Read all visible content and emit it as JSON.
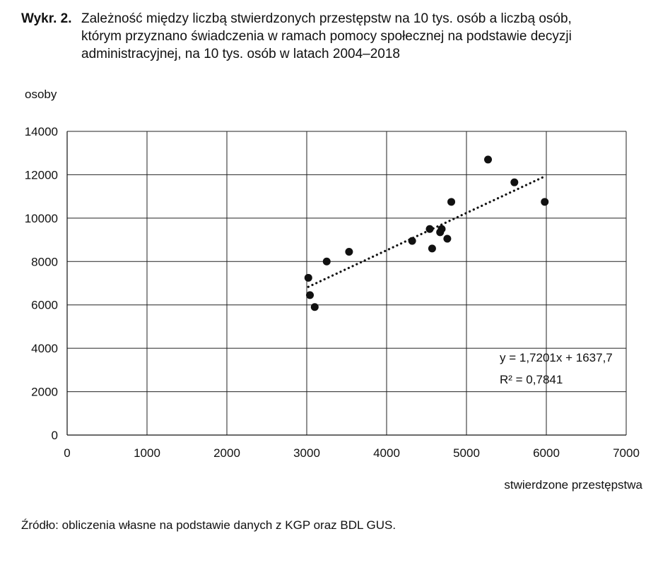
{
  "figure": {
    "label": "Wykr. 2.",
    "title_lines": [
      "Zależność między liczbą stwierdzonych przestępstw na 10 tys. osób a liczbą osób,",
      "którym przyznano świadczenia w ramach pomocy społecznej na podstawie decyzji",
      "administracyjnej, na 10 tys. osób w latach 2004–2018"
    ],
    "source": "Źródło: obliczenia własne na podstawie danych z KGP oraz BDL GUS."
  },
  "chart_data": {
    "type": "scatter",
    "title": "Zależność między liczbą stwierdzonych przestępstw na 10 tys. osób a liczbą osób, którym przyznano świadczenia w ramach pomocy społecznej na podstawie decyzji administracyjnej, na 10 tys. osób w latach 2004–2018",
    "xlabel": "stwierdzone przestępstwa",
    "ylabel": "osoby",
    "xlim": [
      0,
      7000
    ],
    "ylim": [
      0,
      14000
    ],
    "x_ticks": [
      0,
      1000,
      2000,
      3000,
      4000,
      5000,
      6000,
      7000
    ],
    "y_ticks": [
      0,
      2000,
      4000,
      6000,
      8000,
      10000,
      12000,
      14000
    ],
    "grid": true,
    "points": [
      {
        "x": 3020,
        "y": 7250
      },
      {
        "x": 3040,
        "y": 6450
      },
      {
        "x": 3100,
        "y": 5900
      },
      {
        "x": 3250,
        "y": 8000
      },
      {
        "x": 3530,
        "y": 8450
      },
      {
        "x": 4320,
        "y": 8950
      },
      {
        "x": 4540,
        "y": 9500
      },
      {
        "x": 4570,
        "y": 8600
      },
      {
        "x": 4670,
        "y": 9350
      },
      {
        "x": 4690,
        "y": 9500
      },
      {
        "x": 4760,
        "y": 9050
      },
      {
        "x": 4810,
        "y": 10750
      },
      {
        "x": 5270,
        "y": 12700
      },
      {
        "x": 5600,
        "y": 11650
      },
      {
        "x": 5980,
        "y": 10750
      }
    ],
    "trendline": {
      "type": "linear",
      "slope": 1.7201,
      "intercept": 1637.7,
      "x_range": [
        3020,
        5980
      ],
      "style": "dotted",
      "equation_text": "y = 1,7201x + 1637,7",
      "r2_text": "R² = 0,7841"
    }
  }
}
